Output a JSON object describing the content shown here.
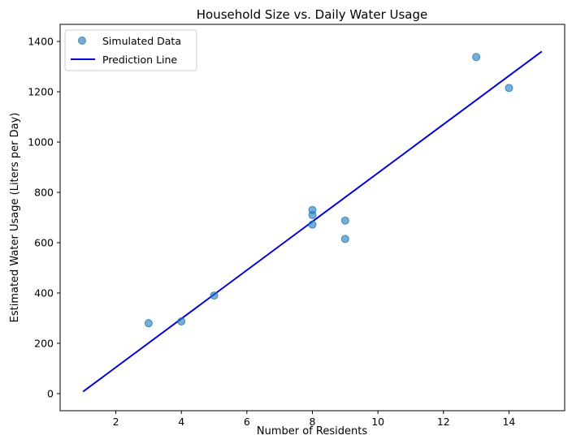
{
  "chart_data": {
    "type": "scatter",
    "title": "Household Size vs. Daily Water Usage",
    "xlabel": "Number of Residents",
    "ylabel": "Estimated Water Usage (Liters per Day)",
    "xlim": [
      0.3,
      15.7
    ],
    "ylim": [
      -68,
      1468
    ],
    "x_ticks": [
      2,
      4,
      6,
      8,
      10,
      12,
      14
    ],
    "y_ticks": [
      0,
      200,
      400,
      600,
      800,
      1000,
      1200,
      1400
    ],
    "grid": false,
    "legend_position": "top-left",
    "series": [
      {
        "name": "Simulated Data",
        "kind": "scatter",
        "color": "#1f77b4",
        "points": [
          {
            "x": 3,
            "y": 280
          },
          {
            "x": 4,
            "y": 287
          },
          {
            "x": 5,
            "y": 390
          },
          {
            "x": 8,
            "y": 730
          },
          {
            "x": 8,
            "y": 710
          },
          {
            "x": 8,
            "y": 672
          },
          {
            "x": 9,
            "y": 688
          },
          {
            "x": 9,
            "y": 615
          },
          {
            "x": 13,
            "y": 1338
          },
          {
            "x": 14,
            "y": 1215
          }
        ]
      },
      {
        "name": "Prediction Line",
        "kind": "line",
        "color": "#0000dd",
        "points": [
          {
            "x": 1,
            "y": 8
          },
          {
            "x": 15,
            "y": 1360
          }
        ]
      }
    ]
  }
}
